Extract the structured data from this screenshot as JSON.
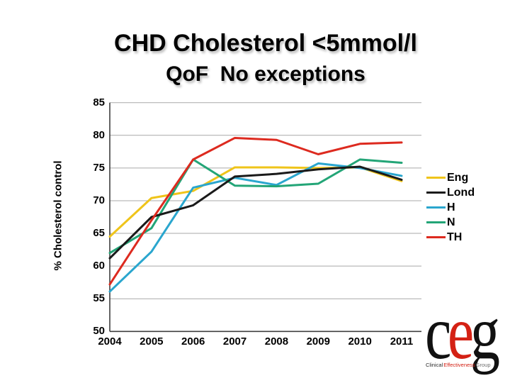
{
  "title": {
    "line1": "CHD Cholesterol <5mmol/l",
    "line2": "QoF  No exceptions"
  },
  "chart_data": {
    "type": "line",
    "x": [
      "2004",
      "2005",
      "2006",
      "2007",
      "2008",
      "2009",
      "2010",
      "2011"
    ],
    "series": [
      {
        "name": "Eng",
        "color": "#EFC41A",
        "values": [
          64.5,
          70.4,
          71.5,
          75.1,
          75.1,
          75.0,
          75.1,
          73.0
        ]
      },
      {
        "name": "Lond",
        "color": "#1A1A1A",
        "values": [
          61.2,
          67.5,
          69.3,
          73.7,
          74.1,
          74.8,
          75.2,
          73.2
        ]
      },
      {
        "name": "H",
        "color": "#2AA6CE",
        "values": [
          56.1,
          62.2,
          72.0,
          73.5,
          72.4,
          75.7,
          75.0,
          73.8
        ]
      },
      {
        "name": "N",
        "color": "#23A577",
        "values": [
          62.0,
          65.8,
          76.3,
          72.3,
          72.2,
          72.6,
          76.3,
          75.8
        ]
      },
      {
        "name": "TH",
        "color": "#DD2A1F",
        "values": [
          57.2,
          67.0,
          76.3,
          79.6,
          79.3,
          77.1,
          78.7,
          78.9
        ]
      }
    ],
    "xlabel": "",
    "ylabel": "% Cholesterol control",
    "ylim": [
      50,
      85
    ],
    "yticks": [
      85,
      80,
      75,
      70,
      65,
      60,
      55,
      50
    ],
    "grid": true,
    "legend_position": "right",
    "draw_order": [
      "Eng",
      "H",
      "N",
      "Lond",
      "TH"
    ]
  },
  "colors": {
    "gridline": "#A9A9A9",
    "axis": "#3F3F3F"
  },
  "logo": {
    "letters": [
      {
        "char": "c",
        "color": "#111111"
      },
      {
        "char": "e",
        "color": "#D42114"
      },
      {
        "char": "g",
        "color": "#111111"
      }
    ],
    "subtext": [
      {
        "text": "Clinical",
        "color": "#2B2B2B"
      },
      {
        "text": "Effectiveness",
        "color": "#D42114"
      },
      {
        "text": "Group",
        "color": "#6E6E6E"
      }
    ]
  }
}
